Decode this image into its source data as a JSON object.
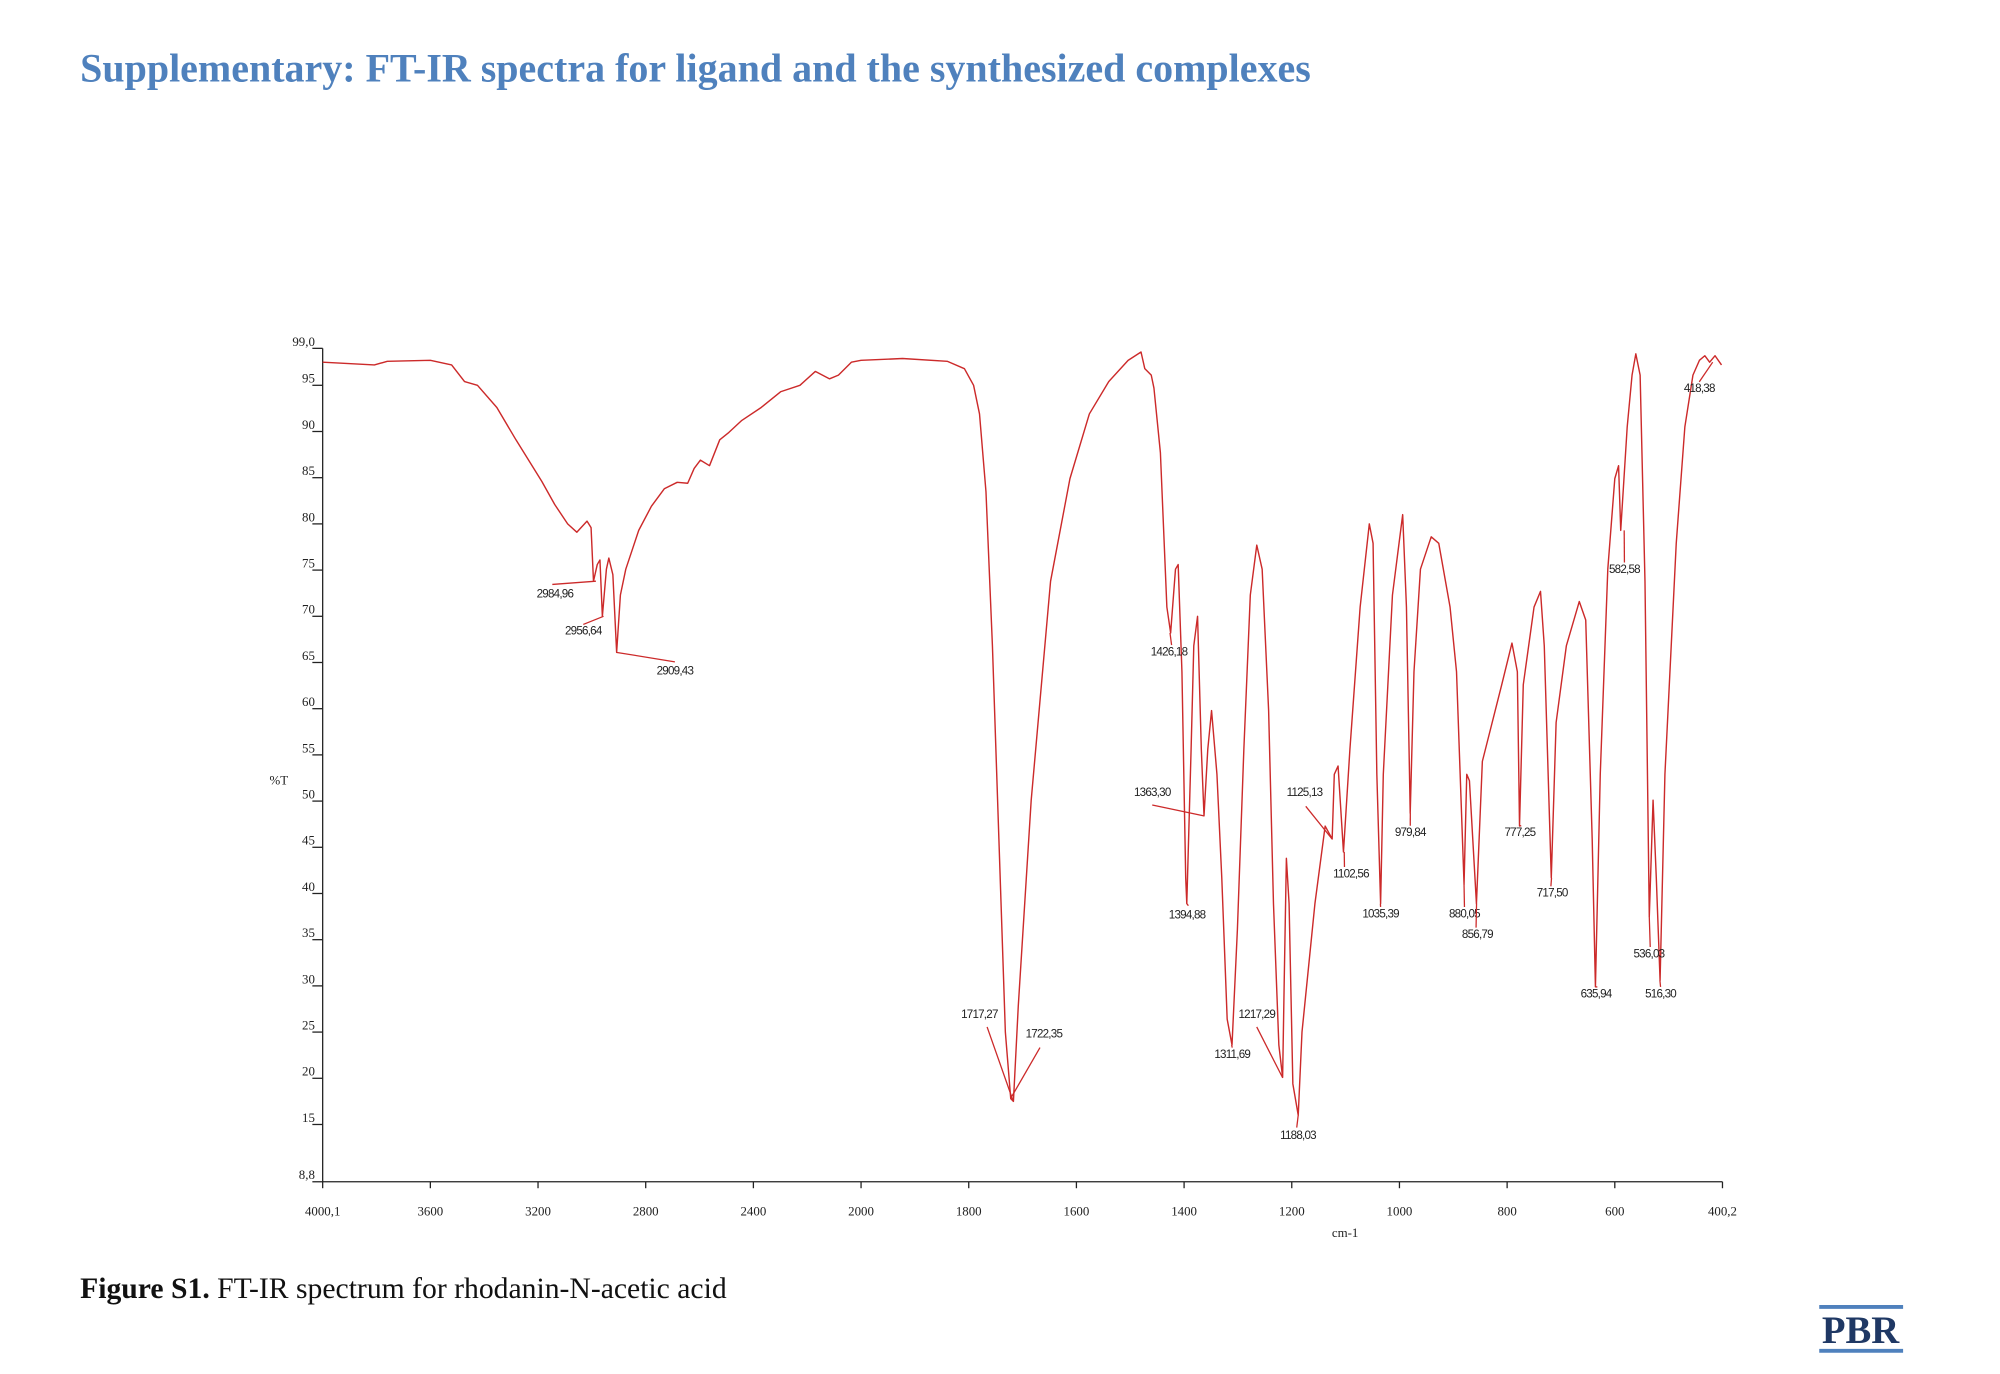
{
  "header": {
    "title": "Supplementary: FT-IR spectra for ligand and the synthesized complexes"
  },
  "chart_data": {
    "type": "line",
    "xlabel": "cm-1",
    "ylabel": "%T",
    "color": "#cc2a2a",
    "xlim": [
      4000.1,
      400.2
    ],
    "ylim": [
      8.8,
      99.0
    ],
    "xticks": [
      {
        "value": 4000.1,
        "label": "4000,1"
      },
      3600,
      3200,
      2800,
      2400,
      2000,
      1800,
      1600,
      1400,
      1200,
      1000,
      800,
      600,
      {
        "value": 400.2,
        "label": "400,2"
      }
    ],
    "yticks": [
      {
        "value": 99.0,
        "label": "99,0"
      },
      95,
      90,
      85,
      80,
      75,
      70,
      65,
      60,
      55,
      50,
      45,
      40,
      35,
      30,
      25,
      20,
      15,
      {
        "value": 8.8,
        "label": "8,8"
      }
    ],
    "x": [
      4000,
      3808,
      3760,
      3600,
      3521,
      3473,
      3425,
      3353,
      3282,
      3186,
      3138,
      3090,
      3056,
      3018,
      3003,
      2994,
      2980,
      2970,
      2961,
      2946,
      2937,
      2922,
      2908,
      2894,
      2874,
      2826,
      2779,
      2731,
      2683,
      2644,
      2620,
      2597,
      2563,
      2525,
      2491,
      2443,
      2371,
      2299,
      2227,
      2170,
      2117,
      2084,
      2036,
      2000,
      1923,
      1840,
      1808,
      1791,
      1780,
      1768,
      1756,
      1744,
      1732,
      1722,
      1717,
      1708,
      1684,
      1648,
      1612,
      1576,
      1540,
      1504,
      1480,
      1473,
      1461,
      1456,
      1444,
      1432,
      1425,
      1416,
      1411,
      1404,
      1397,
      1395,
      1387,
      1382,
      1375,
      1368,
      1363,
      1356,
      1349,
      1339,
      1330,
      1320,
      1311,
      1301,
      1289,
      1277,
      1265,
      1255,
      1243,
      1234,
      1224,
      1217,
      1214,
      1210,
      1205,
      1198,
      1188,
      1181,
      1157,
      1138,
      1125,
      1121,
      1114,
      1104,
      1092,
      1073,
      1056,
      1049,
      1042,
      1035,
      1030,
      1013,
      994,
      987,
      980,
      973,
      961,
      941,
      927,
      906,
      894,
      880,
      875,
      870,
      857,
      846,
      810,
      791,
      781,
      777,
      770,
      750,
      738,
      731,
      718,
      709,
      690,
      666,
      654,
      642,
      636,
      627,
      613,
      600,
      593,
      589,
      577,
      568,
      561,
      553,
      544,
      536,
      529,
      523,
      516,
      507,
      486,
      470,
      455,
      443,
      433,
      424,
      414,
      402
    ],
    "values": [
      97.5,
      97.2,
      97.6,
      97.7,
      97.2,
      95.4,
      95.0,
      92.6,
      89.1,
      84.6,
      82.1,
      80.0,
      79.1,
      80.3,
      79.6,
      73.8,
      75.6,
      76.1,
      70.0,
      75.1,
      76.3,
      74.5,
      66.1,
      72.3,
      75.1,
      79.3,
      81.9,
      83.8,
      84.5,
      84.4,
      86.0,
      86.9,
      86.3,
      89.1,
      89.9,
      91.2,
      92.6,
      94.3,
      95.0,
      96.5,
      95.7,
      96.1,
      97.5,
      97.7,
      97.9,
      97.6,
      96.8,
      95.0,
      91.9,
      83.5,
      66.8,
      45.9,
      25.0,
      17.8,
      17.5,
      27.8,
      50.1,
      73.8,
      84.9,
      91.9,
      95.4,
      97.7,
      98.6,
      96.8,
      96.1,
      94.7,
      87.7,
      71.0,
      68.2,
      75.1,
      75.6,
      64.0,
      41.7,
      38.9,
      55.6,
      66.8,
      70.0,
      55.6,
      48.4,
      55.6,
      59.8,
      52.9,
      41.7,
      26.4,
      23.6,
      36.1,
      55.6,
      72.3,
      77.7,
      75.1,
      59.8,
      38.9,
      23.6,
      20.1,
      30.6,
      43.8,
      38.9,
      19.4,
      16.0,
      25.0,
      38.9,
      47.3,
      45.9,
      52.9,
      53.8,
      44.5,
      55.6,
      71.0,
      80.0,
      77.9,
      52.9,
      38.9,
      52.9,
      72.3,
      81.0,
      71.0,
      48.7,
      64.0,
      75.1,
      78.6,
      77.9,
      71.0,
      64.0,
      41.0,
      52.9,
      52.2,
      38.9,
      54.3,
      62.6,
      67.1,
      64.0,
      47.3,
      62.6,
      71.0,
      72.7,
      66.8,
      41.7,
      58.5,
      66.8,
      71.6,
      69.6,
      45.9,
      29.9,
      52.9,
      75.1,
      84.9,
      86.3,
      79.3,
      90.5,
      96.1,
      98.4,
      96.1,
      73.8,
      37.5,
      50.1,
      41.7,
      30.6,
      52.9,
      77.9,
      90.5,
      96.1,
      97.7,
      98.2,
      97.5,
      98.2,
      97.2
    ],
    "annotations": [
      {
        "label": "2984,96",
        "x": 2984.96,
        "y": 73.8
      },
      {
        "label": "2956,64",
        "x": 2956.64,
        "y": 70.0
      },
      {
        "label": "2909,43",
        "x": 2909.43,
        "y": 66.1
      },
      {
        "label": "1717,27",
        "x": 1717.27,
        "y": 17.5
      },
      {
        "label": "1722,35",
        "x": 1722.35,
        "y": 17.8
      },
      {
        "label": "1426,18",
        "x": 1426.18,
        "y": 68.2
      },
      {
        "label": "1394,88",
        "x": 1394.88,
        "y": 38.9
      },
      {
        "label": "1363,30",
        "x": 1363.3,
        "y": 48.4
      },
      {
        "label": "1311,69",
        "x": 1311.69,
        "y": 23.6
      },
      {
        "label": "1217,29",
        "x": 1217.29,
        "y": 20.1
      },
      {
        "label": "1188,03",
        "x": 1188.03,
        "y": 16.0
      },
      {
        "label": "1125,13",
        "x": 1125.13,
        "y": 45.9
      },
      {
        "label": "1102,56",
        "x": 1102.56,
        "y": 44.5
      },
      {
        "label": "1035,39",
        "x": 1035.39,
        "y": 38.9
      },
      {
        "label": "979,84",
        "x": 979.84,
        "y": 48.7
      },
      {
        "label": "880,05",
        "x": 880.05,
        "y": 41.0
      },
      {
        "label": "856,79",
        "x": 856.79,
        "y": 38.9
      },
      {
        "label": "777,25",
        "x": 777.25,
        "y": 47.3
      },
      {
        "label": "717,50",
        "x": 717.5,
        "y": 41.7
      },
      {
        "label": "635,94",
        "x": 635.94,
        "y": 29.9
      },
      {
        "label": "582,58",
        "x": 582.58,
        "y": 79.3
      },
      {
        "label": "536,03",
        "x": 536.03,
        "y": 37.5
      },
      {
        "label": "516,30",
        "x": 516.3,
        "y": 30.6
      },
      {
        "label": "418,38",
        "x": 418.38,
        "y": 97.5
      }
    ]
  },
  "caption": {
    "label": "Figure S1.",
    "text": "FT-IR spectrum for rhodanin-N-acetic acid"
  },
  "logo": "PBR"
}
